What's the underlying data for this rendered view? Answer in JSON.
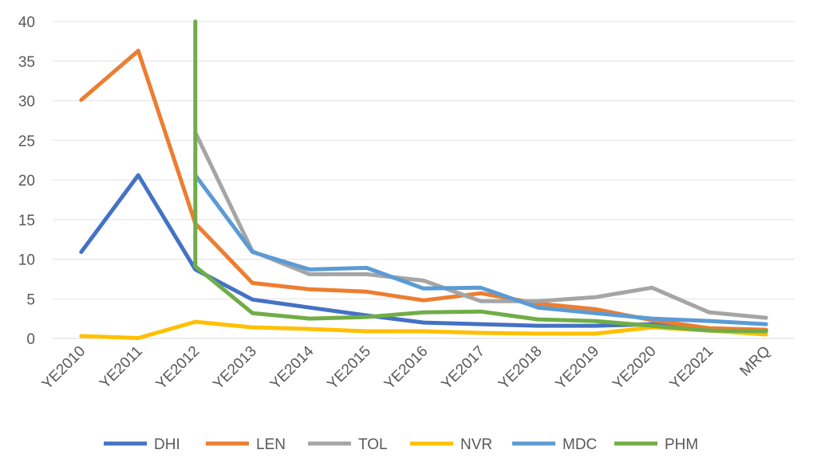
{
  "chart_data": {
    "type": "line",
    "title": "",
    "xlabel": "",
    "ylabel": "",
    "ylim": [
      0,
      40
    ],
    "yticks": [
      0,
      5,
      10,
      15,
      20,
      25,
      30,
      35,
      40
    ],
    "grid": true,
    "legend_position": "bottom",
    "categories": [
      "YE2010",
      "YE2011",
      "YE2012",
      "YE2013",
      "YE2014",
      "YE2015",
      "YE2016",
      "YE2017",
      "YE2018",
      "YE2019",
      "YE2020",
      "YE2021",
      "MRQ"
    ],
    "series": [
      {
        "name": "DHI",
        "color": "#4472C4",
        "values": [
          10.9,
          20.6,
          8.7,
          4.9,
          3.9,
          2.9,
          2.0,
          1.8,
          1.6,
          1.6,
          1.8,
          1.1,
          1.0
        ]
      },
      {
        "name": "LEN",
        "color": "#ED7D31",
        "values": [
          30.1,
          36.3,
          14.5,
          7.0,
          6.2,
          5.9,
          4.8,
          5.7,
          4.4,
          3.7,
          2.3,
          1.3,
          1.1
        ]
      },
      {
        "name": "TOL",
        "color": "#A5A5A5",
        "values": [
          null,
          null,
          26.0,
          11.0,
          8.1,
          8.1,
          7.3,
          4.7,
          4.7,
          5.2,
          6.4,
          3.3,
          2.6
        ]
      },
      {
        "name": "NVR",
        "color": "#FFC000",
        "values": [
          0.3,
          0.05,
          2.1,
          1.4,
          1.2,
          0.9,
          0.9,
          0.7,
          0.6,
          0.6,
          1.4,
          1.0,
          0.5
        ]
      },
      {
        "name": "MDC",
        "color": "#5B9BD5",
        "values": [
          null,
          null,
          20.6,
          10.9,
          8.7,
          8.9,
          6.3,
          6.4,
          3.9,
          3.2,
          2.5,
          2.2,
          1.8
        ]
      },
      {
        "name": "PHM",
        "color": "#70AD47",
        "values": [
          null,
          null,
          [
            40.0,
            9.1
          ],
          3.2,
          2.5,
          2.7,
          3.3,
          3.4,
          2.4,
          2.2,
          1.6,
          1.0,
          0.9
        ]
      }
    ]
  }
}
